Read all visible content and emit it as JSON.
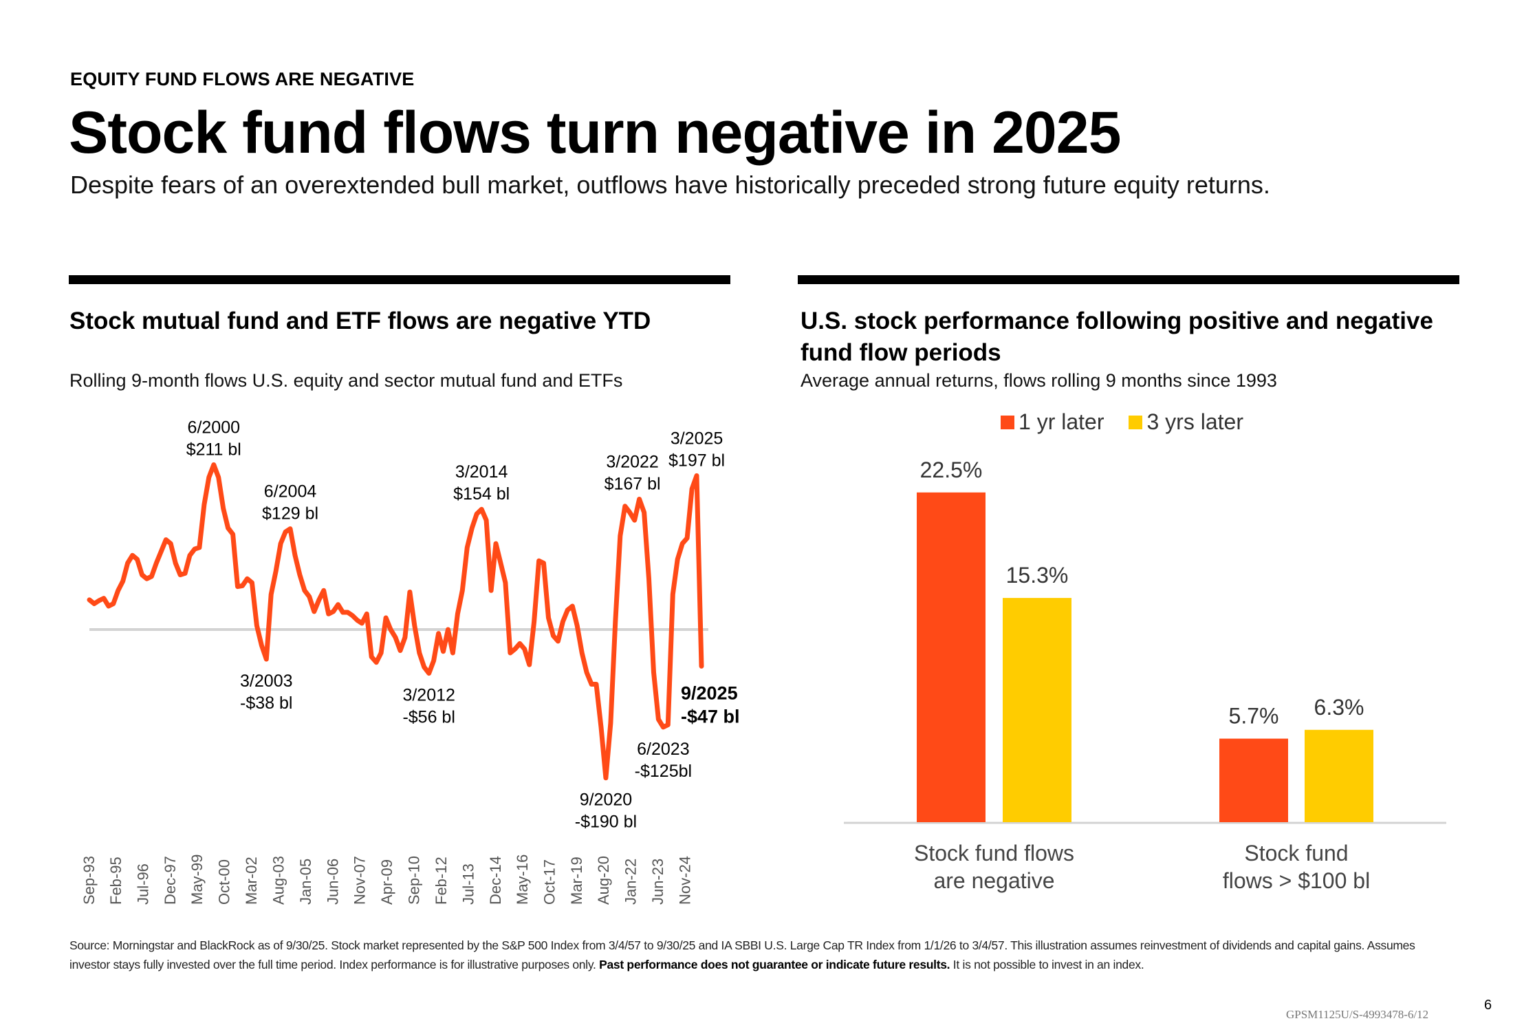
{
  "header": {
    "eyebrow": "EQUITY FUND FLOWS ARE NEGATIVE",
    "title": "Stock fund flows turn negative in 2025",
    "subtitle": "Despite fears of an overextended bull market, outflows have historically preceded strong future equity returns."
  },
  "left_panel": {
    "title": "Stock mutual fund and ETF flows are negative YTD",
    "subtitle": "Rolling 9-month flows U.S. equity and sector mutual fund and ETFs"
  },
  "right_panel": {
    "title": "U.S. stock performance following positive and negative fund flow periods",
    "subtitle": "Average annual returns, flows rolling 9 months since 1993"
  },
  "colors": {
    "series_1yr": "#FF4A17",
    "series_3yr": "#FFCC00",
    "line": "#FF4A17",
    "zero_line": "#D3D3D3",
    "axis_label": "#555555"
  },
  "chart_data": [
    {
      "type": "line",
      "title": "Stock mutual fund and ETF flows are negative YTD",
      "subtitle": "Rolling 9-month flows U.S. equity and sector mutual fund and ETFs",
      "xlabel": "",
      "ylabel": "",
      "unit": "$ bl",
      "x_range": [
        1993.75,
        2025.75
      ],
      "ylim": [
        -200,
        220
      ],
      "grid": false,
      "reference_line": 0,
      "x_tick_labels": [
        "Sep-93",
        "Feb-95",
        "Jul-96",
        "Dec-97",
        "May-99",
        "Oct-00",
        "Mar-02",
        "Aug-03",
        "Jan-05",
        "Jun-06",
        "Nov-07",
        "Apr-09",
        "Sep-10",
        "Feb-12",
        "Jul-13",
        "Dec-14",
        "May-16",
        "Oct-17",
        "Mar-19",
        "Aug-20",
        "Jan-22",
        "Jun-23",
        "Nov-24"
      ],
      "x_tick_values": [
        1993.67,
        1995.08,
        1996.5,
        1997.92,
        1999.33,
        2000.75,
        2002.17,
        2003.58,
        2005.0,
        2006.42,
        2007.83,
        2009.25,
        2010.67,
        2012.08,
        2013.5,
        2014.92,
        2016.33,
        2017.75,
        2019.17,
        2020.58,
        2022.0,
        2023.42,
        2024.83
      ],
      "series": [
        {
          "name": "Rolling 9-month flows",
          "points": [
            [
              1993.75,
              38
            ],
            [
              1994.0,
              33
            ],
            [
              1994.25,
              37
            ],
            [
              1994.5,
              40
            ],
            [
              1994.75,
              30
            ],
            [
              1995.0,
              33
            ],
            [
              1995.25,
              50
            ],
            [
              1995.5,
              62
            ],
            [
              1995.75,
              85
            ],
            [
              1996.0,
              95
            ],
            [
              1996.25,
              90
            ],
            [
              1996.5,
              70
            ],
            [
              1996.75,
              65
            ],
            [
              1997.0,
              68
            ],
            [
              1997.25,
              85
            ],
            [
              1997.5,
              100
            ],
            [
              1997.75,
              115
            ],
            [
              1998.0,
              110
            ],
            [
              1998.25,
              85
            ],
            [
              1998.5,
              70
            ],
            [
              1998.75,
              72
            ],
            [
              1999.0,
              95
            ],
            [
              1999.25,
              103
            ],
            [
              1999.5,
              105
            ],
            [
              1999.75,
              160
            ],
            [
              2000.0,
              195
            ],
            [
              2000.25,
              211
            ],
            [
              2000.5,
              195
            ],
            [
              2000.75,
              155
            ],
            [
              2001.0,
              130
            ],
            [
              2001.25,
              122
            ],
            [
              2001.5,
              55
            ],
            [
              2001.75,
              56
            ],
            [
              2002.0,
              65
            ],
            [
              2002.25,
              60
            ],
            [
              2002.5,
              5
            ],
            [
              2002.75,
              -20
            ],
            [
              2003.0,
              -38
            ],
            [
              2003.25,
              45
            ],
            [
              2003.5,
              75
            ],
            [
              2003.75,
              110
            ],
            [
              2004.0,
              125
            ],
            [
              2004.25,
              129
            ],
            [
              2004.5,
              95
            ],
            [
              2004.75,
              70
            ],
            [
              2005.0,
              50
            ],
            [
              2005.25,
              42
            ],
            [
              2005.5,
              23
            ],
            [
              2005.75,
              38
            ],
            [
              2006.0,
              50
            ],
            [
              2006.25,
              20
            ],
            [
              2006.5,
              23
            ],
            [
              2006.75,
              32
            ],
            [
              2007.0,
              22
            ],
            [
              2007.25,
              22
            ],
            [
              2007.5,
              18
            ],
            [
              2007.75,
              12
            ],
            [
              2008.0,
              8
            ],
            [
              2008.25,
              20
            ],
            [
              2008.5,
              -35
            ],
            [
              2008.75,
              -42
            ],
            [
              2009.0,
              -30
            ],
            [
              2009.25,
              15
            ],
            [
              2009.5,
              0
            ],
            [
              2009.75,
              -10
            ],
            [
              2010.0,
              -27
            ],
            [
              2010.25,
              -10
            ],
            [
              2010.5,
              48
            ],
            [
              2010.75,
              5
            ],
            [
              2011.0,
              -30
            ],
            [
              2011.25,
              -48
            ],
            [
              2011.5,
              -56
            ],
            [
              2011.75,
              -40
            ],
            [
              2012.0,
              -5
            ],
            [
              2012.25,
              -28
            ],
            [
              2012.5,
              0
            ],
            [
              2012.75,
              -30
            ],
            [
              2013.0,
              20
            ],
            [
              2013.25,
              50
            ],
            [
              2013.5,
              105
            ],
            [
              2013.75,
              130
            ],
            [
              2014.0,
              148
            ],
            [
              2014.25,
              154
            ],
            [
              2014.5,
              140
            ],
            [
              2014.75,
              50
            ],
            [
              2015.0,
              110
            ],
            [
              2015.25,
              85
            ],
            [
              2015.5,
              60
            ],
            [
              2015.75,
              -30
            ],
            [
              2016.0,
              -25
            ],
            [
              2016.25,
              -18
            ],
            [
              2016.5,
              -25
            ],
            [
              2016.75,
              -45
            ],
            [
              2017.0,
              10
            ],
            [
              2017.25,
              88
            ],
            [
              2017.5,
              85
            ],
            [
              2017.75,
              15
            ],
            [
              2018.0,
              -8
            ],
            [
              2018.25,
              -15
            ],
            [
              2018.5,
              10
            ],
            [
              2018.75,
              25
            ],
            [
              2019.0,
              30
            ],
            [
              2019.25,
              5
            ],
            [
              2019.5,
              -30
            ],
            [
              2019.75,
              -55
            ],
            [
              2020.0,
              -70
            ],
            [
              2020.25,
              -70
            ],
            [
              2020.5,
              -125
            ],
            [
              2020.75,
              -190
            ],
            [
              2021.0,
              -120
            ],
            [
              2021.25,
              10
            ],
            [
              2021.5,
              120
            ],
            [
              2021.75,
              158
            ],
            [
              2022.0,
              150
            ],
            [
              2022.25,
              140
            ],
            [
              2022.5,
              167
            ],
            [
              2022.75,
              150
            ],
            [
              2023.0,
              65
            ],
            [
              2023.25,
              -55
            ],
            [
              2023.5,
              -115
            ],
            [
              2023.75,
              -125
            ],
            [
              2024.0,
              -122
            ],
            [
              2024.25,
              45
            ],
            [
              2024.5,
              90
            ],
            [
              2024.75,
              110
            ],
            [
              2025.0,
              117
            ],
            [
              2025.25,
              180
            ],
            [
              2025.5,
              197
            ],
            [
              2025.75,
              -47
            ]
          ]
        }
      ],
      "annotations": [
        {
          "date": "6/2000",
          "value": "$211 bl",
          "x": 2000.25,
          "y": 211,
          "position": "above",
          "bold": false
        },
        {
          "date": "6/2004",
          "value": "$129 bl",
          "x": 2004.25,
          "y": 129,
          "position": "above",
          "bold": false
        },
        {
          "date": "3/2003",
          "value": "-$38 bl",
          "x": 2003.0,
          "y": -38,
          "position": "below",
          "bold": false
        },
        {
          "date": "3/2012",
          "value": "-$56 bl",
          "x": 2011.5,
          "y": -56,
          "position": "below",
          "bold": false
        },
        {
          "date": "3/2014",
          "value": "$154 bl",
          "x": 2014.25,
          "y": 154,
          "position": "above",
          "bold": false
        },
        {
          "date": "3/2022",
          "value": "$167 bl",
          "x": 2022.5,
          "y": 167,
          "position": "above-left",
          "bold": false
        },
        {
          "date": "3/2025",
          "value": "$197 bl",
          "x": 2025.5,
          "y": 197,
          "position": "above",
          "bold": false
        },
        {
          "date": "9/2020",
          "value": "-$190 bl",
          "x": 2020.75,
          "y": -190,
          "position": "below",
          "bold": false
        },
        {
          "date": "6/2023",
          "value": "-$125bl",
          "x": 2023.75,
          "y": -125,
          "position": "below",
          "bold": false
        },
        {
          "date": "9/2025",
          "value": "-$47 bl",
          "x": 2025.75,
          "y": -47,
          "position": "right-below",
          "bold": true
        }
      ]
    },
    {
      "type": "bar",
      "title": "U.S. stock performance following positive and negative fund flow periods",
      "subtitle": "Average annual returns, flows rolling 9 months since 1993",
      "xlabel": "",
      "ylabel": "",
      "unit": "%",
      "ylim": [
        0,
        25
      ],
      "grid": false,
      "legend_position": "top-center",
      "categories": [
        "Stock fund flows are negative",
        "Stock fund flows > $100 bl"
      ],
      "category_lines": [
        [
          "Stock fund flows",
          "are negative"
        ],
        [
          "Stock fund",
          "flows > $100 bl"
        ]
      ],
      "series": [
        {
          "name": "1 yr later",
          "values": [
            22.5,
            5.7
          ],
          "labels": [
            "22.5%",
            "5.7%"
          ]
        },
        {
          "name": "3 yrs later",
          "values": [
            15.3,
            6.3
          ],
          "labels": [
            "15.3%",
            "6.3%"
          ]
        }
      ]
    }
  ],
  "footer": {
    "source_intro": "Source: Morningstar and BlackRock as of 9/30/25. Stock market represented by the S&P 500 Index from 3/4/57 to 9/30/25 and  IA SBBI U.S. Large Cap TR Index from 1/1/26 to 3/4/57. This illustration assumes reinvestment of dividends and capital gains. Assumes investor stays fully invested over the full time period. Index performance is for illustrative purposes only.",
    "source_bold": "Past performance does not guarantee or indicate future results.",
    "source_outro": " It is not possible to invest in an index.",
    "doc_id": "GPSM1125U/S-4993478-6/12",
    "page_number": "6"
  }
}
